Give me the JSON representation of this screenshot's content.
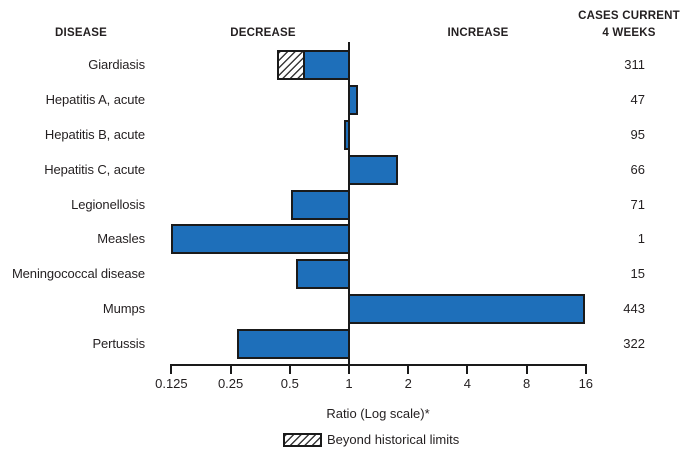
{
  "header": {
    "disease": "DISEASE",
    "decrease": "DECREASE",
    "increase": "INCREASE",
    "cases_line1": "CASES CURRENT",
    "cases_line2": "4 WEEKS"
  },
  "chart_data": {
    "type": "bar",
    "orientation": "horizontal",
    "scale": "log2",
    "title": "",
    "xlabel": "Ratio (Log scale)*",
    "axis": {
      "ticks": [
        0.125,
        0.25,
        0.5,
        1,
        2,
        4,
        8,
        16
      ],
      "tick_labels": [
        "0.125",
        "0.25",
        "0.5",
        "1",
        "2",
        "4",
        "8",
        "16"
      ],
      "baseline": 1,
      "xlim": [
        0.125,
        16
      ]
    },
    "legend": {
      "label": "Beyond historical limits",
      "swatch": "diagonal-hatch",
      "position": "bottom"
    },
    "rows": [
      {
        "disease": "Giardiasis",
        "ratio": 0.43,
        "historical_limit": 0.6,
        "beyond_historical_limits": true,
        "cases_current_4_weeks": 311
      },
      {
        "disease": "Hepatitis A, acute",
        "ratio": 1.11,
        "beyond_historical_limits": false,
        "cases_current_4_weeks": 47
      },
      {
        "disease": "Hepatitis B, acute",
        "ratio": 0.94,
        "beyond_historical_limits": false,
        "cases_current_4_weeks": 95
      },
      {
        "disease": "Hepatitis C, acute",
        "ratio": 1.78,
        "beyond_historical_limits": false,
        "cases_current_4_weeks": 66
      },
      {
        "disease": "Legionellosis",
        "ratio": 0.51,
        "beyond_historical_limits": false,
        "cases_current_4_weeks": 71
      },
      {
        "disease": "Measles",
        "ratio": 0.125,
        "beyond_historical_limits": false,
        "cases_current_4_weeks": 1
      },
      {
        "disease": "Meningococcal disease",
        "ratio": 0.54,
        "beyond_historical_limits": false,
        "cases_current_4_weeks": 15
      },
      {
        "disease": "Mumps",
        "ratio": 15.9,
        "beyond_historical_limits": false,
        "cases_current_4_weeks": 443
      },
      {
        "disease": "Pertussis",
        "ratio": 0.27,
        "beyond_historical_limits": false,
        "cases_current_4_weeks": 322
      }
    ],
    "colors": {
      "bar_fill": "#1e6fba",
      "bar_border": "#1a1a1a",
      "axis": "#1a1a1a",
      "text": "#231f20"
    }
  }
}
